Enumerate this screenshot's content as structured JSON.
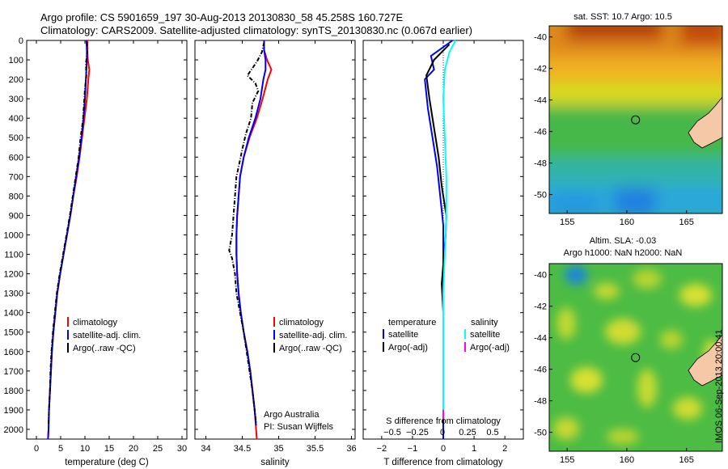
{
  "header": {
    "line1": "Argo profile: CS 5901659_197 30-Aug-2013 20130830_58 45.258S 160.727E",
    "line2": "Climatology: CARS2009. Satellite-adjusted climatology: synTS_20130830.nc (0.067d earlier)"
  },
  "colors": {
    "climatology": "#ff0000",
    "satellite_adj": "#0000ff",
    "argo": "#000000",
    "sal_satellite": "#00ffff",
    "sal_argo": "#ff00ff"
  },
  "chart_data": [
    {
      "type": "line",
      "id": "temperature",
      "xlabel": "temperature (deg C)",
      "xlim": [
        -2,
        31
      ],
      "ylim": [
        2050,
        0
      ],
      "y_reversed": true,
      "xticks": [
        0,
        5,
        10,
        15,
        20,
        25,
        30
      ],
      "yticks": [
        0,
        100,
        200,
        300,
        400,
        500,
        600,
        700,
        800,
        900,
        1000,
        1100,
        1200,
        1300,
        1400,
        1500,
        1600,
        1700,
        1800,
        1900,
        2000
      ],
      "series": [
        {
          "name": "climatology",
          "color": "#ff0000",
          "points": [
            [
              10.5,
              0
            ],
            [
              10.5,
              50
            ],
            [
              10.6,
              100
            ],
            [
              10.9,
              150
            ],
            [
              10.7,
              200
            ],
            [
              10.4,
              300
            ],
            [
              9.9,
              400
            ],
            [
              9.4,
              500
            ],
            [
              8.9,
              600
            ],
            [
              8.3,
              700
            ],
            [
              7.6,
              800
            ],
            [
              7.0,
              900
            ],
            [
              6.3,
              1000
            ],
            [
              5.6,
              1100
            ],
            [
              4.9,
              1200
            ],
            [
              4.3,
              1300
            ],
            [
              3.9,
              1400
            ],
            [
              3.5,
              1500
            ],
            [
              3.2,
              1600
            ],
            [
              3.0,
              1700
            ],
            [
              2.8,
              1800
            ],
            [
              2.6,
              1900
            ],
            [
              2.5,
              2000
            ],
            [
              2.4,
              2050
            ]
          ]
        },
        {
          "name": "satellite-adj. clim.",
          "color": "#0000ff",
          "points": [
            [
              10.3,
              0
            ],
            [
              10.4,
              50
            ],
            [
              10.4,
              100
            ],
            [
              10.3,
              150
            ],
            [
              10.2,
              200
            ],
            [
              10.0,
              300
            ],
            [
              9.7,
              400
            ],
            [
              9.3,
              500
            ],
            [
              8.8,
              600
            ],
            [
              8.2,
              700
            ],
            [
              7.6,
              800
            ],
            [
              7.0,
              900
            ],
            [
              6.3,
              1000
            ],
            [
              5.6,
              1100
            ],
            [
              4.9,
              1200
            ],
            [
              4.3,
              1300
            ],
            [
              3.9,
              1400
            ],
            [
              3.5,
              1500
            ],
            [
              3.2,
              1600
            ],
            [
              3.0,
              1700
            ],
            [
              2.8,
              1800
            ],
            [
              2.6,
              1900
            ],
            [
              2.5,
              2000
            ],
            [
              2.4,
              2050
            ]
          ]
        },
        {
          "name": "Argo(..raw -QC)",
          "color": "#000000",
          "dashed": true,
          "points": [
            [
              10.4,
              10
            ],
            [
              10.5,
              60
            ],
            [
              10.2,
              120
            ],
            [
              10.3,
              180
            ],
            [
              10.0,
              250
            ],
            [
              9.8,
              330
            ],
            [
              9.6,
              410
            ],
            [
              9.1,
              500
            ],
            [
              8.7,
              600
            ],
            [
              8.1,
              700
            ],
            [
              7.5,
              800
            ],
            [
              6.9,
              900
            ],
            [
              6.2,
              1000
            ],
            [
              5.5,
              1100
            ],
            [
              4.8,
              1200
            ],
            [
              4.2,
              1300
            ],
            [
              3.8,
              1400
            ],
            [
              3.4,
              1500
            ],
            [
              3.1,
              1600
            ],
            [
              2.9,
              1700
            ],
            [
              2.8,
              1800
            ],
            [
              2.6,
              1900
            ],
            [
              2.5,
              1970
            ]
          ]
        }
      ],
      "legend": {
        "placement": "lower-right",
        "entries": [
          "climatology",
          "satellite-adj. clim.",
          "Argo(..raw -QC)"
        ]
      }
    },
    {
      "type": "line",
      "id": "salinity",
      "xlabel": "salinity",
      "xlim": [
        33.85,
        36.05
      ],
      "ylim": [
        2050,
        0
      ],
      "y_reversed": true,
      "xticks": [
        34,
        34.5,
        35,
        35.5,
        36
      ],
      "xtick_labels": [
        "34",
        "34.5",
        "35",
        "35.5",
        "36"
      ],
      "series": [
        {
          "name": "climatology",
          "color": "#ff0000",
          "points": [
            [
              34.8,
              0
            ],
            [
              34.8,
              50
            ],
            [
              34.84,
              100
            ],
            [
              34.9,
              150
            ],
            [
              34.85,
              200
            ],
            [
              34.78,
              300
            ],
            [
              34.7,
              400
            ],
            [
              34.6,
              500
            ],
            [
              34.52,
              600
            ],
            [
              34.47,
              700
            ],
            [
              34.45,
              800
            ],
            [
              34.43,
              900
            ],
            [
              34.42,
              1000
            ],
            [
              34.42,
              1100
            ],
            [
              34.43,
              1200
            ],
            [
              34.45,
              1300
            ],
            [
              34.48,
              1400
            ],
            [
              34.52,
              1500
            ],
            [
              34.57,
              1600
            ],
            [
              34.61,
              1700
            ],
            [
              34.64,
              1800
            ],
            [
              34.67,
              1900
            ],
            [
              34.69,
              2000
            ],
            [
              34.7,
              2050
            ]
          ]
        },
        {
          "name": "satellite-adj. clim.",
          "color": "#0000ff",
          "points": [
            [
              34.8,
              0
            ],
            [
              34.8,
              50
            ],
            [
              34.82,
              100
            ],
            [
              34.82,
              150
            ],
            [
              34.79,
              200
            ],
            [
              34.75,
              300
            ],
            [
              34.68,
              400
            ],
            [
              34.59,
              500
            ],
            [
              34.52,
              600
            ],
            [
              34.47,
              700
            ],
            [
              34.45,
              800
            ],
            [
              34.43,
              900
            ],
            [
              34.42,
              1000
            ],
            [
              34.42,
              1100
            ],
            [
              34.43,
              1200
            ],
            [
              34.45,
              1300
            ],
            [
              34.48,
              1400
            ],
            [
              34.52,
              1500
            ],
            [
              34.57,
              1600
            ],
            [
              34.61,
              1700
            ],
            [
              34.64,
              1800
            ],
            [
              34.67,
              1900
            ],
            [
              34.69,
              1980
            ]
          ]
        },
        {
          "name": "Argo(..raw -QC)",
          "color": "#000000",
          "dashed": true,
          "points": [
            [
              34.8,
              10
            ],
            [
              34.77,
              60
            ],
            [
              34.7,
              110
            ],
            [
              34.57,
              180
            ],
            [
              34.68,
              220
            ],
            [
              34.72,
              260
            ],
            [
              34.64,
              320
            ],
            [
              34.62,
              400
            ],
            [
              34.55,
              480
            ],
            [
              34.5,
              560
            ],
            [
              34.45,
              650
            ],
            [
              34.42,
              700
            ],
            [
              34.4,
              800
            ],
            [
              34.38,
              900
            ],
            [
              34.36,
              1000
            ],
            [
              34.32,
              1080
            ],
            [
              34.36,
              1120
            ],
            [
              34.4,
              1200
            ],
            [
              34.42,
              1300
            ],
            [
              34.47,
              1400
            ],
            [
              34.52,
              1500
            ],
            [
              34.56,
              1600
            ],
            [
              34.6,
              1700
            ],
            [
              34.64,
              1800
            ],
            [
              34.67,
              1900
            ],
            [
              34.69,
              1970
            ]
          ]
        }
      ],
      "legend": {
        "placement": "lower-right",
        "entries": [
          "climatology",
          "satellite-adj. clim.",
          "Argo(..raw -QC)"
        ]
      },
      "annotation": [
        "Argo Australia",
        "PI: Susan Wijffels"
      ]
    },
    {
      "type": "line",
      "id": "difference",
      "xlabel": "T difference from climatology",
      "xlabel_top": "S difference from climatology",
      "xlim": [
        -2.6,
        2.6
      ],
      "ylim": [
        2050,
        0
      ],
      "y_reversed": true,
      "xticks": [
        -2,
        -1,
        0,
        1,
        2
      ],
      "xtick_labels": [
        "−2",
        "−1",
        "0",
        "1",
        "2"
      ],
      "s_ticks": [
        "−0.5",
        "−0.25",
        "0",
        "0.25",
        "0.5"
      ],
      "series": [
        {
          "name": "temperature satellite",
          "color": "#0000ff",
          "points": [
            [
              0.3,
              0
            ],
            [
              -0.4,
              80
            ],
            [
              -0.3,
              150
            ],
            [
              -0.6,
              200
            ],
            [
              -0.5,
              350
            ],
            [
              -0.35,
              500
            ],
            [
              -0.2,
              650
            ],
            [
              -0.1,
              800
            ],
            [
              0.0,
              950
            ],
            [
              0.0,
              1200
            ],
            [
              0.0,
              1500
            ],
            [
              0.0,
              1800
            ],
            [
              0.0,
              2050
            ]
          ]
        },
        {
          "name": "temperature Argo(-adj)",
          "color": "#000000",
          "points": [
            [
              0.2,
              20
            ],
            [
              -0.3,
              100
            ],
            [
              -0.55,
              180
            ],
            [
              -0.45,
              300
            ],
            [
              -0.3,
              450
            ],
            [
              -0.15,
              600
            ],
            [
              -0.05,
              750
            ],
            [
              0.1,
              900
            ],
            [
              0.08,
              1000
            ],
            [
              0.0,
              1150
            ],
            [
              -0.05,
              1250
            ],
            [
              0.0,
              1400
            ],
            [
              0.0,
              1600
            ],
            [
              0.0,
              1800
            ],
            [
              0.0,
              1970
            ]
          ]
        },
        {
          "name": "salinity satellite",
          "color": "#00ffff",
          "points": [
            [
              0.4,
              0
            ],
            [
              0.2,
              60
            ],
            [
              0.05,
              150
            ],
            [
              0.0,
              300
            ],
            [
              0.05,
              500
            ],
            [
              0.1,
              700
            ],
            [
              0.1,
              900
            ],
            [
              0.05,
              1100
            ],
            [
              0.0,
              1300
            ],
            [
              0.0,
              1600
            ],
            [
              0.0,
              1900
            ]
          ]
        },
        {
          "name": "salinity Argo(-adj)",
          "color": "#ff00ff",
          "points": [
            [
              0.0,
              1900
            ],
            [
              0.0,
              1950
            ]
          ]
        }
      ],
      "legend": {
        "placement": "lower-center",
        "entries": [
          "temperature",
          "satellite",
          "Argo(-adj)",
          "salinity",
          "satellite",
          "Argo(-adj)"
        ]
      }
    },
    {
      "type": "heatmap",
      "id": "sst_map",
      "title": "sat. SST: 10.7  Argo: 10.5",
      "xlim": [
        153.5,
        168
      ],
      "ylim": [
        -51.2,
        -39.3
      ],
      "xticks": [
        155,
        160,
        165
      ],
      "yticks": [
        -40,
        -42,
        -44,
        -46,
        -48,
        -50
      ],
      "marker": [
        160.73,
        -45.26
      ]
    },
    {
      "type": "heatmap",
      "id": "sla_map",
      "title": "Altim. SLA: -0.03",
      "subtitle": "Argo h1000: NaN h2000: NaN",
      "xlim": [
        153.5,
        168
      ],
      "ylim": [
        -51.2,
        -39.3
      ],
      "xticks": [
        155,
        160,
        165
      ],
      "yticks": [
        -40,
        -42,
        -44,
        -46,
        -48,
        -50
      ],
      "marker": [
        160.73,
        -45.26
      ]
    }
  ],
  "credit": "IMOS 06-Sep-2013 20:00:41"
}
